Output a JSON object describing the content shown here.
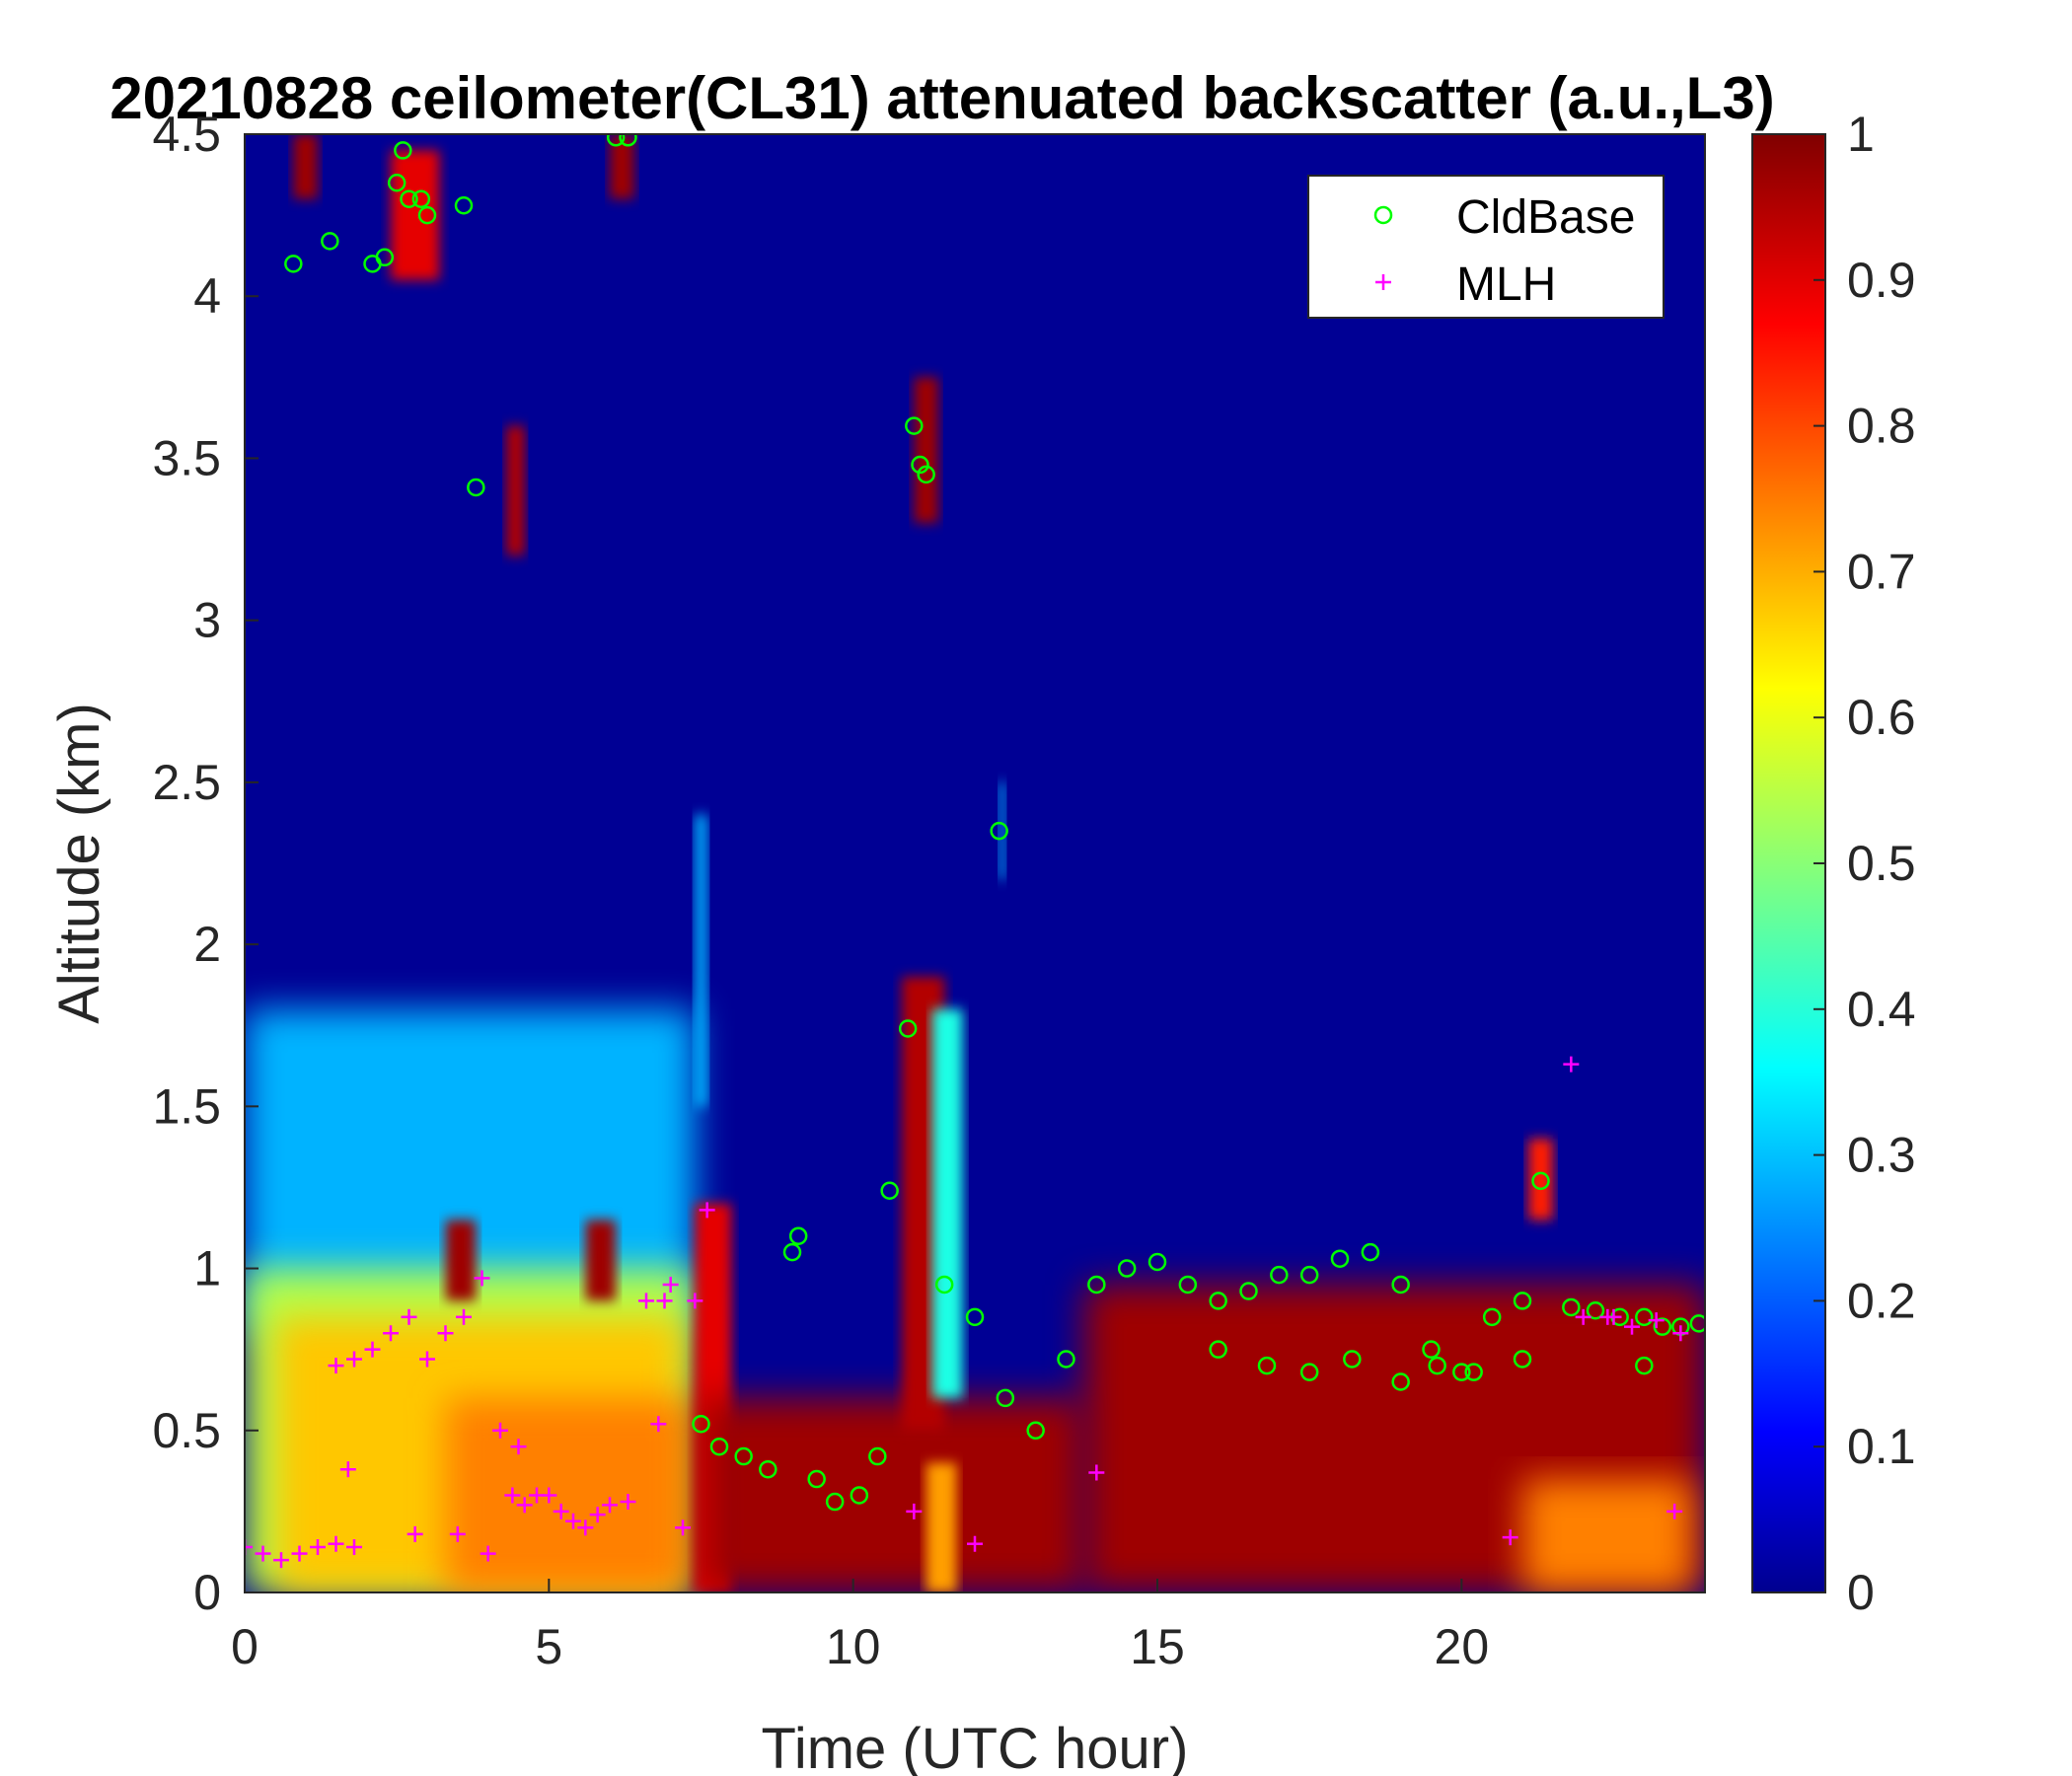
{
  "chart_data": {
    "type": "heatmap",
    "title": "20210828 ceilometer(CL31) attenuated backscatter (a.u.,L3)",
    "xlabel": "Time (UTC hour)",
    "ylabel": "Altitude (km)",
    "xlim": [
      0,
      24
    ],
    "ylim": [
      0,
      4.5
    ],
    "xticks": [
      0,
      5,
      10,
      15,
      20
    ],
    "yticks": [
      0,
      0.5,
      1,
      1.5,
      2,
      2.5,
      3,
      3.5,
      4,
      4.5
    ],
    "xtick_labels": [
      "0",
      "5",
      "10",
      "15",
      "20"
    ],
    "ytick_labels": [
      "0",
      "0.5",
      "1",
      "1.5",
      "2",
      "2.5",
      "3",
      "3.5",
      "4",
      "4.5"
    ],
    "colorbar": {
      "colormap": "jet",
      "range": [
        0,
        1
      ],
      "ticks": [
        0,
        0.1,
        0.2,
        0.3,
        0.4,
        0.5,
        0.6,
        0.7,
        0.8,
        0.9,
        1
      ],
      "tick_labels": [
        "0",
        "0.1",
        "0.2",
        "0.3",
        "0.4",
        "0.5",
        "0.6",
        "0.7",
        "0.8",
        "0.9",
        "1"
      ]
    },
    "legend": {
      "position": "top-right",
      "entries": [
        {
          "label": "CldBase",
          "marker": "circle",
          "color": "#00ff00"
        },
        {
          "label": "MLH",
          "marker": "plus",
          "color": "#ff00ff"
        }
      ]
    },
    "background_value": 0.02,
    "regions": [
      {
        "x": [
          0,
          7.4
        ],
        "y": [
          0.8,
          1.8
        ],
        "v": 0.3
      },
      {
        "x": [
          0,
          7.4
        ],
        "y": [
          0,
          1.0
        ],
        "v": 0.55
      },
      {
        "x": [
          0.5,
          7.2
        ],
        "y": [
          0,
          0.85
        ],
        "v": 0.68
      },
      {
        "x": [
          3.3,
          7.3
        ],
        "y": [
          0,
          0.6
        ],
        "v": 0.75
      },
      {
        "x": [
          3.3,
          3.8
        ],
        "y": [
          0.9,
          1.15
        ],
        "v": 0.97
      },
      {
        "x": [
          5.6,
          6.1
        ],
        "y": [
          0.9,
          1.15
        ],
        "v": 0.97
      },
      {
        "x": [
          7.4,
          8.0
        ],
        "y": [
          0,
          1.2
        ],
        "v": 0.9
      },
      {
        "x": [
          7.5,
          13.8
        ],
        "y": [
          0,
          0.6
        ],
        "v": 0.97
      },
      {
        "x": [
          13.8,
          24
        ],
        "y": [
          0,
          0.95
        ],
        "v": 0.97
      },
      {
        "x": [
          21.0,
          23.8
        ],
        "y": [
          0,
          0.35
        ],
        "v": 0.75
      },
      {
        "x": [
          11.2,
          11.7
        ],
        "y": [
          0,
          0.4
        ],
        "v": 0.72
      },
      {
        "x": [
          10.8,
          11.5
        ],
        "y": [
          0.5,
          1.9
        ],
        "v": 0.95
      },
      {
        "x": [
          11.3,
          11.8
        ],
        "y": [
          0.6,
          1.8
        ],
        "v": 0.4
      },
      {
        "x": [
          11.0,
          11.4
        ],
        "y": [
          3.3,
          3.75
        ],
        "v": 0.97
      },
      {
        "x": [
          4.3,
          4.6
        ],
        "y": [
          3.2,
          3.6
        ],
        "v": 0.95
      },
      {
        "x": [
          0.8,
          1.2
        ],
        "y": [
          4.3,
          4.5
        ],
        "v": 0.97
      },
      {
        "x": [
          2.4,
          3.2
        ],
        "y": [
          4.05,
          4.45
        ],
        "v": 0.9
      },
      {
        "x": [
          6.0,
          6.4
        ],
        "y": [
          4.3,
          4.5
        ],
        "v": 0.97
      },
      {
        "x": [
          21.1,
          21.5
        ],
        "y": [
          1.15,
          1.4
        ],
        "v": 0.85
      },
      {
        "x": [
          7.4,
          7.6
        ],
        "y": [
          1.5,
          2.4
        ],
        "v": 0.3
      },
      {
        "x": [
          12.4,
          12.5
        ],
        "y": [
          2.2,
          2.5
        ],
        "v": 0.3
      }
    ],
    "series": [
      {
        "name": "CldBase",
        "marker": "circle",
        "x": [
          0.8,
          1.4,
          2.1,
          2.3,
          2.5,
          2.6,
          2.7,
          2.9,
          3.0,
          3.6,
          3.8,
          6.1,
          6.3,
          7.5,
          7.8,
          8.2,
          8.6,
          9.0,
          9.1,
          9.4,
          9.7,
          10.1,
          10.4,
          10.6,
          10.9,
          11.0,
          11.1,
          11.2,
          11.5,
          12.0,
          12.5,
          13.0,
          13.5,
          14.0,
          14.5,
          15.0,
          15.5,
          16.0,
          16.5,
          17.0,
          17.5,
          18.0,
          18.5,
          19.0,
          19.5,
          20.0,
          20.5,
          21.0,
          21.3,
          21.8,
          22.2,
          22.6,
          23.0,
          23.3,
          23.6,
          23.9,
          16.0,
          16.8,
          17.5,
          18.2,
          19.0,
          19.6,
          20.2,
          21.0,
          23.0
        ],
        "y": [
          4.1,
          4.17,
          4.1,
          4.12,
          4.35,
          4.45,
          4.3,
          4.3,
          4.25,
          4.28,
          3.41,
          4.49,
          4.49,
          0.52,
          0.45,
          0.42,
          0.38,
          1.05,
          1.1,
          0.35,
          0.28,
          0.3,
          0.42,
          1.24,
          1.74,
          3.6,
          3.48,
          3.45,
          0.95,
          0.85,
          0.6,
          0.5,
          0.72,
          0.95,
          1.0,
          1.02,
          0.95,
          0.9,
          0.93,
          0.98,
          0.98,
          1.03,
          1.05,
          0.95,
          0.75,
          0.68,
          0.85,
          0.9,
          1.27,
          0.88,
          0.87,
          0.85,
          0.85,
          0.82,
          0.82,
          0.83,
          0.75,
          0.7,
          0.68,
          0.72,
          0.65,
          0.7,
          0.68,
          0.72,
          0.7
        ],
        "isolated": [
          {
            "x": 12.4,
            "y": 2.35
          }
        ]
      },
      {
        "name": "MLH",
        "marker": "plus",
        "x": [
          0.0,
          0.3,
          0.6,
          0.9,
          1.2,
          1.5,
          1.8,
          1.5,
          1.8,
          2.1,
          2.4,
          2.7,
          3.0,
          3.3,
          3.6,
          3.9,
          4.2,
          4.4,
          4.6,
          4.8,
          5.0,
          5.2,
          5.4,
          5.6,
          5.8,
          6.0,
          6.3,
          6.6,
          6.9,
          7.2,
          1.7,
          2.8,
          3.5,
          4.0,
          4.5,
          6.8,
          7.6,
          11.0,
          12.0,
          14.0,
          20.8,
          21.8,
          22.5,
          23.5,
          22.0,
          22.4,
          22.8,
          23.2,
          23.6,
          7.0,
          7.4
        ],
        "y": [
          0.14,
          0.12,
          0.1,
          0.12,
          0.14,
          0.15,
          0.14,
          0.7,
          0.72,
          0.75,
          0.8,
          0.85,
          0.72,
          0.8,
          0.85,
          0.97,
          0.5,
          0.3,
          0.27,
          0.3,
          0.3,
          0.25,
          0.22,
          0.2,
          0.24,
          0.27,
          0.28,
          0.9,
          0.9,
          0.2,
          0.38,
          0.18,
          0.18,
          0.12,
          0.45,
          0.52,
          1.18,
          0.25,
          0.15,
          0.37,
          0.17,
          1.63,
          0.85,
          0.25,
          0.85,
          0.85,
          0.82,
          0.84,
          0.8,
          0.95,
          0.9
        ]
      }
    ]
  }
}
